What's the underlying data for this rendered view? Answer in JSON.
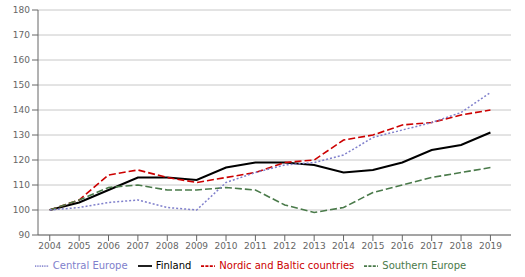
{
  "chart_data": {
    "type": "line",
    "x": [
      2004,
      2005,
      2006,
      2007,
      2008,
      2009,
      2010,
      2011,
      2012,
      2013,
      2014,
      2015,
      2016,
      2017,
      2018,
      2019
    ],
    "series": [
      {
        "name": "Finland",
        "color": "#000000",
        "line_style": "solid",
        "values": [
          100,
          103,
          108,
          113,
          113,
          112,
          117,
          119,
          119,
          118,
          115,
          116,
          119,
          124,
          126,
          131
        ]
      },
      {
        "name": "Nordic and Baltic countries",
        "color": "#cc0000",
        "line_style": "dashed",
        "values": [
          100,
          104,
          114,
          116,
          113,
          111,
          113,
          115,
          119,
          120,
          128,
          130,
          134,
          135,
          138,
          140
        ]
      },
      {
        "name": "Southern Europe",
        "color": "#4a7a4a",
        "line_style": "dashed",
        "values": [
          100,
          104,
          109,
          110,
          108,
          108,
          109,
          108,
          102,
          99,
          101,
          107,
          110,
          113,
          115,
          117
        ]
      },
      {
        "name": "Central Europe",
        "color": "#8080cc",
        "line_style": "dotted",
        "values": [
          100,
          101,
          103,
          104,
          101,
          100,
          111,
          115,
          118,
          119,
          122,
          129,
          132,
          135,
          139,
          147
        ]
      }
    ],
    "xlim": [
      2003.6,
      2019.7
    ],
    "xticks": [
      2004,
      2005,
      2006,
      2007,
      2008,
      2009,
      2010,
      2011,
      2012,
      2013,
      2014,
      2015,
      2016,
      2017,
      2018,
      2019
    ],
    "ylim": [
      90,
      180
    ],
    "yticks": [
      90,
      100,
      110,
      120,
      130,
      140,
      150,
      160,
      170,
      180
    ],
    "grid": "y",
    "legend": "bottom"
  }
}
